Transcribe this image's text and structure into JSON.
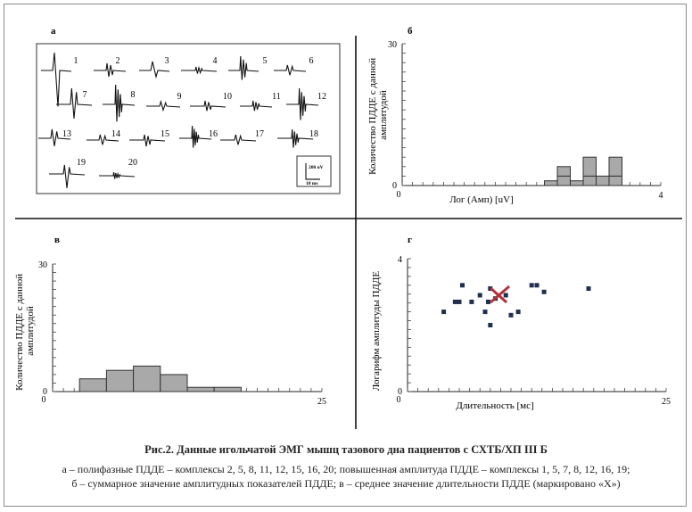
{
  "panels": {
    "a": {
      "label": "а",
      "complex_numbers": [
        "1",
        "2",
        "3",
        "4",
        "5",
        "6",
        "7",
        "8",
        "9",
        "10",
        "11",
        "12",
        "13",
        "14",
        "15",
        "16",
        "17",
        "18",
        "19",
        "20"
      ],
      "scale_amplitude": "200 uV",
      "scale_time": "10 ms"
    },
    "b": {
      "label": "б"
    },
    "c": {
      "label": "в"
    },
    "d": {
      "label": "г"
    }
  },
  "caption": {
    "title": "Рис.2. Данные игольчатой ЭМГ мышц тазового дна пациентов с СХТБ/ХП III Б",
    "line1": "а – полифазные ПДДЕ – комплексы 2, 5, 8, 11, 12, 15, 16, 20; повышенная амплитуда ПДДЕ – комплексы 1, 5, 7, 8, 12, 16, 19;",
    "line2": "б – суммарное значение амплитудных показателей ПДДЕ; в – среднее значение длительности ПДДЕ (маркировано «Х»)"
  },
  "chart_data": [
    {
      "panel": "б",
      "type": "bar",
      "ylabel": "Количество ПДДЕ с данной амплитудой",
      "xlabel": "Лог (Амп) [uV]",
      "xlim": [
        0,
        4
      ],
      "ylim": [
        0,
        30
      ],
      "x_ticks": [
        "0",
        "4"
      ],
      "y_ticks": [
        "0",
        "30"
      ],
      "bin_width": 0.2,
      "bin_starts": [
        2.2,
        2.4,
        2.6,
        2.8,
        3.0,
        3.2
      ],
      "values": [
        1,
        2,
        1,
        2,
        2,
        2
      ],
      "stacked_top": [
        0,
        2,
        0,
        4,
        0,
        4
      ]
    },
    {
      "panel": "в",
      "type": "bar",
      "ylabel": "Количество ПДДЕ с данной амплитудой",
      "xlabel": "",
      "xlim": [
        0,
        25
      ],
      "ylim": [
        0,
        30
      ],
      "x_ticks": [
        "0",
        "25"
      ],
      "y_ticks": [
        "0",
        "30"
      ],
      "bin_width": 2.5,
      "bin_starts": [
        2.5,
        5.0,
        7.5,
        10.0,
        12.5,
        15.0
      ],
      "values": [
        3,
        5,
        6,
        4,
        1,
        1
      ]
    },
    {
      "panel": "г",
      "type": "scatter",
      "ylabel": "Логарифм амплитуды ПДДЕ",
      "xlabel": "Длительность [мс]",
      "xlim": [
        0,
        25
      ],
      "ylim": [
        0,
        4
      ],
      "x_ticks": [
        "0",
        "25"
      ],
      "y_ticks": [
        "0",
        "4"
      ],
      "points": [
        {
          "x": 3.5,
          "y": 2.4
        },
        {
          "x": 4.6,
          "y": 2.7
        },
        {
          "x": 5.0,
          "y": 2.7
        },
        {
          "x": 5.3,
          "y": 3.2
        },
        {
          "x": 6.2,
          "y": 2.7
        },
        {
          "x": 7.0,
          "y": 2.9
        },
        {
          "x": 7.5,
          "y": 2.4
        },
        {
          "x": 7.8,
          "y": 2.7
        },
        {
          "x": 8.0,
          "y": 3.1
        },
        {
          "x": 8.0,
          "y": 2.0
        },
        {
          "x": 8.5,
          "y": 2.8
        },
        {
          "x": 9.5,
          "y": 2.9
        },
        {
          "x": 10.0,
          "y": 2.3
        },
        {
          "x": 10.7,
          "y": 2.4
        },
        {
          "x": 12.0,
          "y": 3.2
        },
        {
          "x": 12.5,
          "y": 3.2
        },
        {
          "x": 13.2,
          "y": 3.0
        },
        {
          "x": 17.5,
          "y": 3.1
        }
      ],
      "mean_marker": {
        "x": 8.8,
        "y": 2.9,
        "color": "#b0333a"
      }
    }
  ]
}
